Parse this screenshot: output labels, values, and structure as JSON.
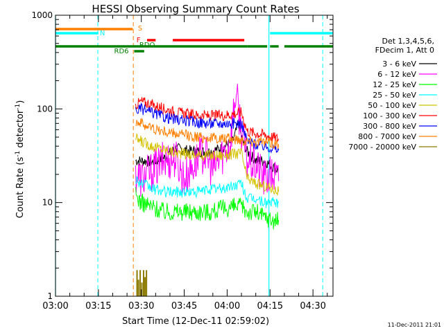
{
  "chart_data": {
    "type": "line",
    "title": "HESSI Observing Summary Count Rates",
    "xlabel": "Start Time (12-Dec-11 02:59:02)",
    "ylabel_parts": [
      "Count Rate (s",
      "-1",
      " detector",
      "-1",
      ")"
    ],
    "yscale": "log",
    "ylim": [
      1,
      1000
    ],
    "xlim_minutes": [
      0,
      97
    ],
    "x_ticks": [
      {
        "t": 0,
        "label": "03:00"
      },
      {
        "t": 15,
        "label": "03:15"
      },
      {
        "t": 30,
        "label": "03:30"
      },
      {
        "t": 45,
        "label": "03:45"
      },
      {
        "t": 60,
        "label": "04:00"
      },
      {
        "t": 75,
        "label": "04:15"
      },
      {
        "t": 90,
        "label": "04:30"
      }
    ],
    "y_ticks": [
      {
        "v": 1,
        "label": "1"
      },
      {
        "v": 10,
        "label": "10"
      },
      {
        "v": 100,
        "label": "100"
      },
      {
        "v": 1000,
        "label": "1000"
      }
    ],
    "legend_title": [
      "Det 1,3,4,5,6,",
      "FDecim 1, Att 0"
    ],
    "legend_placement": "right",
    "series": [
      {
        "name": "3 - 6 keV",
        "color": "#000000",
        "points": [
          [
            28,
            28
          ],
          [
            30,
            28
          ],
          [
            34,
            27
          ],
          [
            38,
            30
          ],
          [
            42,
            38
          ],
          [
            46,
            36
          ],
          [
            50,
            35
          ],
          [
            54,
            35
          ],
          [
            58,
            38
          ],
          [
            62,
            45
          ],
          [
            64,
            70
          ],
          [
            65,
            50
          ],
          [
            67,
            35
          ],
          [
            70,
            28
          ],
          [
            73,
            28
          ],
          [
            76,
            24
          ],
          [
            78,
            22
          ]
        ]
      },
      {
        "name": "6 - 12 keV",
        "color": "#ff00ff",
        "points": [
          [
            28,
            20
          ],
          [
            30,
            18
          ],
          [
            34,
            22
          ],
          [
            38,
            28
          ],
          [
            42,
            30
          ],
          [
            45,
            18
          ],
          [
            48,
            25
          ],
          [
            52,
            35
          ],
          [
            55,
            22
          ],
          [
            58,
            32
          ],
          [
            61,
            42
          ],
          [
            63,
            150
          ],
          [
            65,
            60
          ],
          [
            67,
            28
          ],
          [
            70,
            25
          ],
          [
            73,
            18
          ],
          [
            76,
            20
          ],
          [
            78,
            17
          ]
        ]
      },
      {
        "name": "12 - 25 keV",
        "color": "#00ff00",
        "points": [
          [
            28,
            12
          ],
          [
            30,
            10
          ],
          [
            34,
            9
          ],
          [
            38,
            8
          ],
          [
            42,
            8
          ],
          [
            46,
            8
          ],
          [
            50,
            8
          ],
          [
            54,
            8
          ],
          [
            58,
            8.5
          ],
          [
            62,
            9
          ],
          [
            65,
            9
          ],
          [
            67,
            8
          ],
          [
            70,
            8
          ],
          [
            73,
            7
          ],
          [
            76,
            6.5
          ],
          [
            78,
            6.5
          ]
        ]
      },
      {
        "name": "25 - 50 keV",
        "color": "#00ffff",
        "points": [
          [
            28,
            18
          ],
          [
            30,
            16
          ],
          [
            34,
            14
          ],
          [
            38,
            13
          ],
          [
            42,
            13
          ],
          [
            46,
            13
          ],
          [
            50,
            13
          ],
          [
            54,
            14
          ],
          [
            58,
            14
          ],
          [
            62,
            15
          ],
          [
            65,
            16
          ],
          [
            67,
            11
          ],
          [
            70,
            11
          ],
          [
            73,
            10
          ],
          [
            76,
            10
          ],
          [
            78,
            10
          ]
        ]
      },
      {
        "name": "50 - 100 keV",
        "color": "#d4c200",
        "points": [
          [
            28,
            48
          ],
          [
            30,
            45
          ],
          [
            34,
            40
          ],
          [
            38,
            37
          ],
          [
            42,
            34
          ],
          [
            46,
            33
          ],
          [
            50,
            32
          ],
          [
            54,
            32
          ],
          [
            58,
            32
          ],
          [
            62,
            33
          ],
          [
            65,
            34
          ],
          [
            67,
            18
          ],
          [
            70,
            16
          ],
          [
            73,
            15
          ],
          [
            76,
            14
          ],
          [
            78,
            13
          ]
        ]
      },
      {
        "name": "100 - 300 keV",
        "color": "#ff0000",
        "points": [
          [
            28,
            110
          ],
          [
            30,
            120
          ],
          [
            34,
            110
          ],
          [
            38,
            100
          ],
          [
            42,
            92
          ],
          [
            46,
            88
          ],
          [
            50,
            85
          ],
          [
            54,
            84
          ],
          [
            58,
            85
          ],
          [
            62,
            88
          ],
          [
            65,
            92
          ],
          [
            67,
            58
          ],
          [
            70,
            55
          ],
          [
            73,
            53
          ],
          [
            76,
            50
          ],
          [
            78,
            48
          ]
        ]
      },
      {
        "name": "300 - 800 keV",
        "color": "#0000ff",
        "points": [
          [
            28,
            95
          ],
          [
            30,
            100
          ],
          [
            34,
            90
          ],
          [
            38,
            82
          ],
          [
            42,
            77
          ],
          [
            46,
            74
          ],
          [
            50,
            72
          ],
          [
            54,
            70
          ],
          [
            58,
            70
          ],
          [
            62,
            70
          ],
          [
            65,
            70
          ],
          [
            67,
            45
          ],
          [
            70,
            42
          ],
          [
            73,
            40
          ],
          [
            76,
            38
          ],
          [
            78,
            36
          ]
        ]
      },
      {
        "name": "800 - 7000 keV",
        "color": "#ff8000",
        "points": [
          [
            28,
            75
          ],
          [
            30,
            70
          ],
          [
            34,
            62
          ],
          [
            38,
            57
          ],
          [
            42,
            54
          ],
          [
            46,
            52
          ],
          [
            50,
            50
          ],
          [
            54,
            49
          ],
          [
            58,
            48
          ],
          [
            62,
            48
          ],
          [
            65,
            47
          ],
          [
            67,
            46
          ],
          [
            70,
            45
          ],
          [
            73,
            44
          ],
          [
            76,
            43
          ],
          [
            78,
            42
          ]
        ]
      },
      {
        "name": "7000 - 20000 keV",
        "color": "#8b7a00",
        "points": [
          [
            28.5,
            1.9
          ],
          [
            29,
            1.5
          ],
          [
            29.6,
            1.9
          ],
          [
            30.2,
            1.4
          ],
          [
            30.8,
            1.9
          ],
          [
            31.3,
            1.6
          ],
          [
            31.8,
            1.9
          ]
        ]
      }
    ],
    "annotations": [
      {
        "label": "S",
        "color": "#ff8000"
      },
      {
        "label": "N",
        "color": "#00ffff"
      },
      {
        "label": "F",
        "color": "#ff0000"
      },
      {
        "label": "RDO",
        "color": "#008000"
      },
      {
        "label": "RD6",
        "color": "#008000"
      }
    ]
  },
  "footer": {
    "timestamp": "11-Dec-2011 21:01"
  }
}
